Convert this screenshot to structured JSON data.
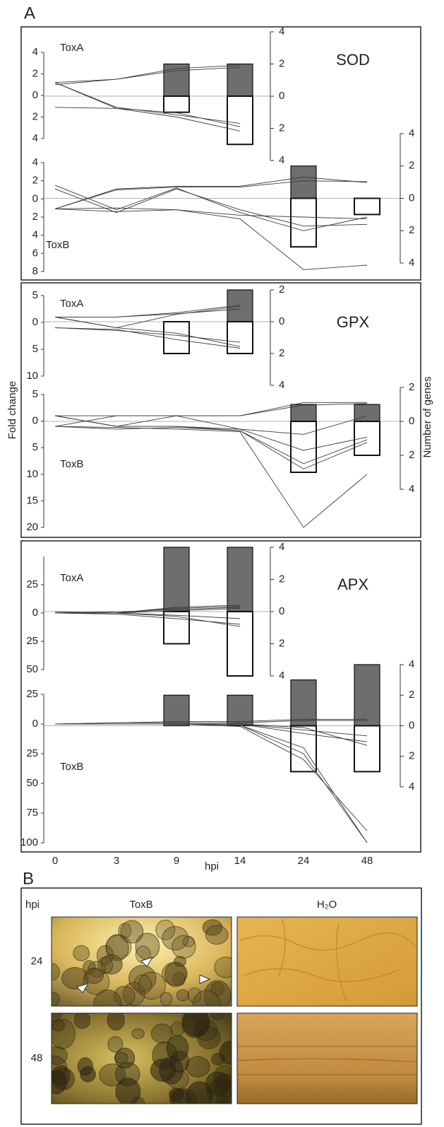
{
  "panel_a_label": "A",
  "chart_data": {
    "type": "bar-line",
    "y_label": "Fold change",
    "y2_label": "Number of genes",
    "x_label": "hpi",
    "categories": [
      "0",
      "3",
      "9",
      "14",
      "24",
      "48"
    ],
    "line_color": "#3a3a3a",
    "up_color": "#6e6e6e",
    "down_color": "#ffffff",
    "panels": [
      {
        "title": "SOD",
        "charts": [
          {
            "label": "ToxA",
            "ylim": [
              -4,
              4
            ],
            "yticks": [
              4,
              2,
              0,
              {
                "value": -2,
                "label": "2"
              },
              {
                "value": -4,
                "label": "4"
              }
            ],
            "y2lim": [
              -4,
              4
            ],
            "y2ticks": [
              4,
              2,
              0,
              {
                "value": -2,
                "label": "2"
              },
              {
                "value": -4,
                "label": "4"
              }
            ],
            "up": [
              null,
              null,
              2,
              2,
              null,
              null
            ],
            "down": [
              null,
              null,
              -1,
              -3,
              null,
              null
            ],
            "lines": [
              [
                1.2,
                1.5,
                2.5,
                2.8,
                null,
                null
              ],
              [
                1.0,
                1.5,
                2.3,
                2.6,
                null,
                null
              ],
              [
                1.2,
                -1.2,
                -2.0,
                -3.3,
                null,
                null
              ],
              [
                1.2,
                -1.1,
                -1.8,
                -2.6,
                null,
                null
              ],
              [
                -1.1,
                -1.2,
                -1.6,
                -2.9,
                null,
                null
              ]
            ]
          },
          {
            "label": "ToxB",
            "ylim": [
              -8,
              4
            ],
            "yticks": [
              4,
              2,
              0,
              {
                "value": -2,
                "label": "2"
              },
              {
                "value": -4,
                "label": "4"
              },
              {
                "value": -6,
                "label": "6"
              },
              {
                "value": -8,
                "label": "8"
              }
            ],
            "y2lim": [
              -4,
              4
            ],
            "y2ticks": [
              4,
              2,
              0,
              {
                "value": -2,
                "label": "2"
              },
              {
                "value": -4,
                "label": "4"
              }
            ],
            "up": [
              null,
              null,
              null,
              null,
              2,
              null
            ],
            "down": [
              null,
              null,
              null,
              null,
              -3,
              -1
            ],
            "lines": [
              [
                -1.1,
                1.1,
                1.4,
                1.4,
                2.4,
                1.8
              ],
              [
                -1.1,
                1.0,
                1.3,
                1.3,
                2.0,
                1.9
              ],
              [
                1.5,
                -1.2,
                1.2,
                -1.5,
                -3.5,
                -2.0
              ],
              [
                1.1,
                -1.5,
                1.1,
                -1.2,
                -3.0,
                -2.8
              ],
              [
                -1.1,
                -1.4,
                -1.2,
                -1.8,
                -2.0,
                -2.2
              ],
              [
                -1.1,
                -1.0,
                -1.2,
                -2.2,
                -7.8,
                -7.3
              ]
            ]
          }
        ]
      },
      {
        "title": "GPX",
        "charts": [
          {
            "label": "ToxA",
            "ylim": [
              -10,
              5
            ],
            "yticks": [
              5,
              0,
              {
                "value": -5,
                "label": "5"
              },
              {
                "value": -10,
                "label": "10"
              }
            ],
            "y2lim": [
              -4,
              2
            ],
            "y2ticks": [
              2,
              0,
              {
                "value": -2,
                "label": "2"
              },
              {
                "value": -4,
                "label": "4"
              }
            ],
            "up": [
              null,
              null,
              null,
              2,
              null,
              null
            ],
            "down": [
              null,
              null,
              -2,
              -2,
              null,
              null
            ],
            "lines": [
              [
                1,
                1,
                1.8,
                3.2,
                null,
                null
              ],
              [
                1,
                1,
                1.6,
                2.5,
                null,
                null
              ],
              [
                1,
                -1,
                1.5,
                3.0,
                null,
                null
              ],
              [
                1,
                -1,
                -2,
                -4.5,
                null,
                null
              ],
              [
                -1,
                -1.5,
                -2.4,
                -3.7,
                null,
                null
              ],
              [
                -1,
                -1.3,
                -3.2,
                -4.8,
                null,
                null
              ]
            ]
          },
          {
            "label": "ToxB",
            "ylim": [
              -20,
              5
            ],
            "yticks": [
              5,
              0,
              {
                "value": -5,
                "label": "5"
              },
              {
                "value": -10,
                "label": "10"
              },
              {
                "value": -15,
                "label": "15"
              },
              {
                "value": -20,
                "label": "20"
              }
            ],
            "y2lim": [
              -4,
              2
            ],
            "y2ticks": [
              2,
              0,
              {
                "value": -2,
                "label": "2"
              },
              {
                "value": -4,
                "label": "4"
              }
            ],
            "up": [
              null,
              null,
              null,
              null,
              1,
              1
            ],
            "down": [
              null,
              null,
              null,
              null,
              -3,
              -2
            ],
            "lines": [
              [
                1,
                -1,
                1,
                -1.5,
                -2.5,
                1
              ],
              [
                1,
                1,
                1,
                1,
                3.5,
                3.5
              ],
              [
                -1,
                1,
                1,
                1,
                3,
                3.3
              ],
              [
                1,
                -1,
                -1,
                -1.5,
                -5.5,
                -3
              ],
              [
                -1,
                -1.5,
                -1.2,
                -1.8,
                -8,
                -3.5
              ],
              [
                1,
                -1,
                -1,
                -1.8,
                -9,
                -4
              ],
              [
                -1,
                -1.2,
                -1.5,
                -2,
                -20,
                -10
              ]
            ]
          }
        ]
      },
      {
        "title": "APX",
        "charts": [
          {
            "label": "ToxA",
            "ylim": [
              -50,
              50
            ],
            "yticks": [
              25,
              0,
              {
                "value": -25,
                "label": "25"
              },
              {
                "value": -50,
                "label": "50"
              }
            ],
            "y2lim": [
              -4,
              4
            ],
            "y2ticks": [
              4,
              2,
              0,
              {
                "value": -2,
                "label": "2"
              },
              {
                "value": -4,
                "label": "4"
              }
            ],
            "up": [
              null,
              null,
              4,
              4,
              null,
              null
            ],
            "down": [
              null,
              null,
              -2,
              -4,
              null,
              null
            ],
            "lines": [
              [
                0,
                0,
                4,
                6,
                null,
                null
              ],
              [
                0,
                0,
                5,
                7,
                null,
                null
              ],
              [
                0,
                1,
                3,
                5,
                null,
                null
              ],
              [
                0,
                0,
                -2,
                -5,
                null,
                null
              ],
              [
                0,
                -1,
                -5,
                -10,
                null,
                null
              ],
              [
                0,
                0,
                -3,
                -12,
                null,
                null
              ],
              [
                1,
                0,
                2,
                4,
                null,
                null
              ]
            ]
          },
          {
            "label": "ToxB",
            "ylim": [
              -100,
              25
            ],
            "yticks": [
              25,
              0,
              {
                "value": -25,
                "label": "25"
              },
              {
                "value": -50,
                "label": "50"
              },
              {
                "value": -75,
                "label": "75"
              },
              {
                "value": -100,
                "label": "100"
              }
            ],
            "y2lim": [
              -4,
              4
            ],
            "y2ticks": [
              4,
              2,
              0,
              {
                "value": -2,
                "label": "2"
              },
              {
                "value": -4,
                "label": "4"
              }
            ],
            "up": [
              null,
              null,
              2,
              2,
              3,
              4
            ],
            "down": [
              null,
              null,
              null,
              null,
              -3,
              -3
            ],
            "lines": [
              [
                0,
                1,
                2,
                2,
                4,
                4
              ],
              [
                0,
                1,
                1,
                1,
                3,
                3
              ],
              [
                0,
                0,
                0,
                0,
                -5,
                -10
              ],
              [
                0,
                0,
                0,
                0,
                -8,
                -15
              ],
              [
                0,
                0,
                0,
                -1,
                -20,
                -100
              ],
              [
                0,
                0,
                0,
                -1,
                -25,
                -100
              ],
              [
                0,
                0,
                0,
                -2,
                -30,
                -90
              ],
              [
                0,
                0,
                0,
                0,
                -3,
                -18
              ]
            ]
          }
        ]
      }
    ]
  },
  "panel_b": {
    "label": "B",
    "corner_label": "hpi",
    "columns": [
      "ToxB",
      "H₂O"
    ],
    "rows": [
      "24",
      "48"
    ]
  }
}
